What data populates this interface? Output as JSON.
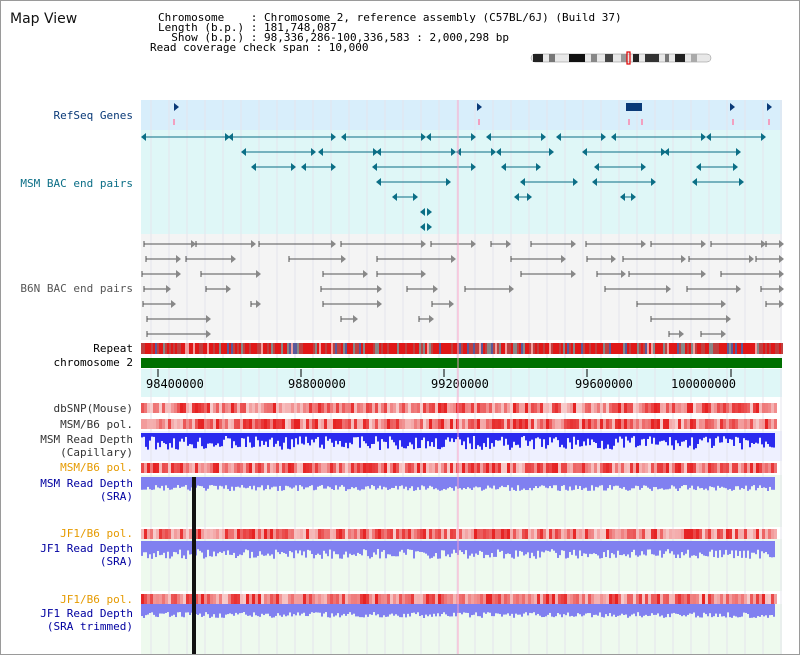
{
  "header": {
    "title": "Map View",
    "chromosome_line": "Chromosome    : Chromosome 2, reference assembly (C57BL/6J) (Build 37)",
    "length_line": "Length (b.p.) : 181,748,087",
    "show_line": "  Show (b.p.) : 98,336,286-100,336,583 : 2,000,298 bp",
    "coverage_line": "Read coverage check span : 10,000"
  },
  "tracks": {
    "refseq": "RefSeq Genes",
    "msm_bac": "MSM BAC end pairs",
    "b6n_bac": "B6N BAC end pairs",
    "repeat": "Repeat",
    "chromosome": "chromosome 2",
    "dbsnp": "dbSNP(Mouse)",
    "msm_b6_pol_1": "MSM/B6 pol.",
    "msm_read_depth_cap_1": "MSM Read Depth",
    "msm_read_depth_cap_2": "(Capillary)",
    "msm_b6_pol_2": "MSM/B6 pol.",
    "msm_read_depth_sra_1": "MSM Read Depth",
    "msm_read_depth_sra_2": "(SRA)",
    "jf1_b6_pol_1": "JF1/B6 pol.",
    "jf1_read_depth_sra_1": "JF1 Read Depth",
    "jf1_read_depth_sra_2": "(SRA)",
    "jf1_b6_pol_2": "JF1/B6 pol.",
    "jf1_read_depth_trim_1": "JF1 Read Depth",
    "jf1_read_depth_trim_2": "(SRA trimmed)"
  },
  "axis": {
    "ticks": [
      "98400000",
      "98800000",
      "99200000",
      "99600000",
      "100000000"
    ]
  },
  "colors": {
    "refseq": "#0a3a78",
    "msm_bac": "#0b6e86",
    "b6n_bac": "#555555",
    "chromosome": "#007000",
    "pol_red": "#e83030",
    "depth_blue": "#2a2aef",
    "depth_light": "#8080f0",
    "orange_label": "#e59a00",
    "navy_label": "#0000a0"
  }
}
